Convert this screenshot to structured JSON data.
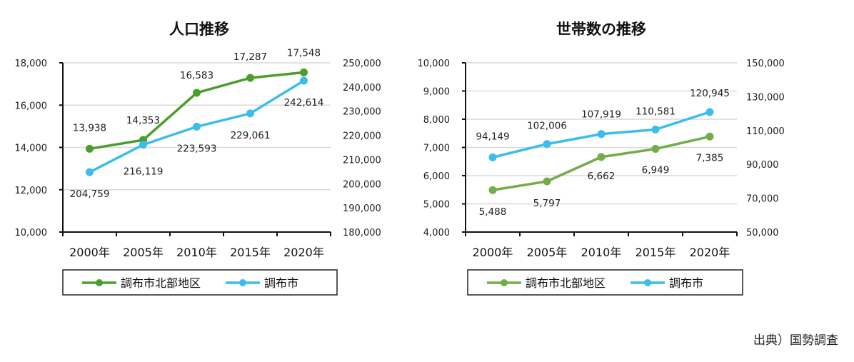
{
  "source_note": "出典）国勢調査",
  "chart_data": [
    {
      "type": "line",
      "title": "人口推移",
      "categories": [
        "2000年",
        "2005年",
        "2010年",
        "2015年",
        "2020年"
      ],
      "y_left": {
        "range": [
          10000,
          18000
        ],
        "step": 2000,
        "ticks": [
          "10,000",
          "12,000",
          "14,000",
          "16,000",
          "18,000"
        ]
      },
      "y_right": {
        "range": [
          180000,
          250000
        ],
        "step": 10000,
        "ticks": [
          "180,000",
          "190,000",
          "200,000",
          "210,000",
          "220,000",
          "230,000",
          "240,000",
          "250,000"
        ]
      },
      "grid": true,
      "legend_position": "bottom",
      "series": [
        {
          "name": "調布市北部地区",
          "axis": "left",
          "color": "#4a9e2a",
          "values": [
            13938,
            14353,
            16583,
            17287,
            17548
          ],
          "labels": [
            "13,938",
            "14,353",
            "16,583",
            "17,287",
            "17,548"
          ]
        },
        {
          "name": "調布市",
          "axis": "right",
          "color": "#3cbcee",
          "values": [
            204759,
            216119,
            223593,
            229061,
            242614
          ],
          "labels": [
            "204,759",
            "216,119",
            "223,593",
            "229,061",
            "242,614"
          ]
        }
      ]
    },
    {
      "type": "line",
      "title": "世帯数の推移",
      "categories": [
        "2000年",
        "2005年",
        "2010年",
        "2015年",
        "2020年"
      ],
      "y_left": {
        "range": [
          4000,
          10000
        ],
        "step": 1000,
        "ticks": [
          "4,000",
          "5,000",
          "6,000",
          "7,000",
          "8,000",
          "9,000",
          "10,000"
        ]
      },
      "y_right": {
        "range": [
          50000,
          150000
        ],
        "step": 20000,
        "ticks": [
          "50,000",
          "70,000",
          "90,000",
          "110,000",
          "130,000",
          "150,000"
        ]
      },
      "grid": true,
      "legend_position": "bottom",
      "series": [
        {
          "name": "調布市北部地区",
          "axis": "left",
          "color": "#72ad4a",
          "values": [
            5488,
            5797,
            6662,
            6949,
            7385
          ],
          "labels": [
            "5,488",
            "5,797",
            "6,662",
            "6,949",
            "7,385"
          ]
        },
        {
          "name": "調布市",
          "axis": "right",
          "color": "#3cbcee",
          "values": [
            94149,
            102006,
            107919,
            110581,
            120945
          ],
          "labels": [
            "94,149",
            "102,006",
            "107,919",
            "110,581",
            "120,945"
          ]
        }
      ]
    }
  ]
}
